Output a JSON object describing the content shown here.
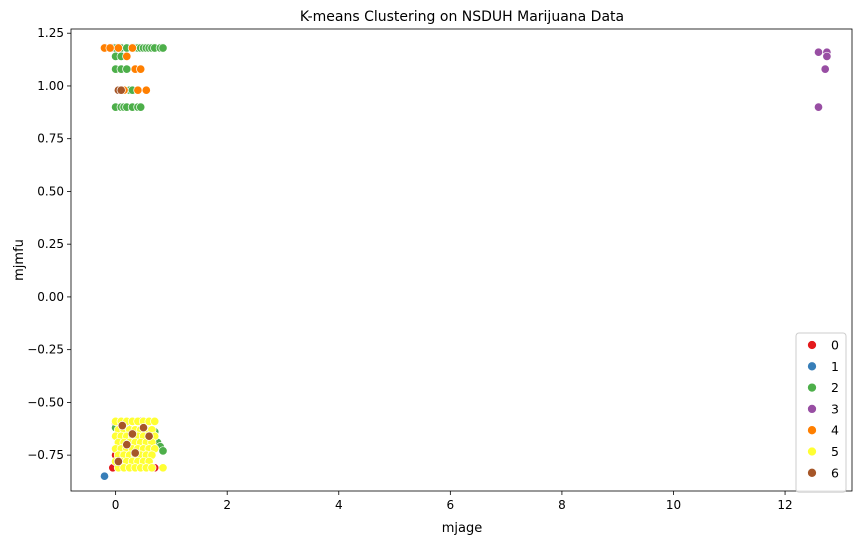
{
  "chart_data": {
    "type": "scatter",
    "title": "K-means Clustering on NSDUH Marijuana Data",
    "xlabel": "mjage",
    "ylabel": "mjmfu",
    "xlim": [
      -0.8,
      13.2
    ],
    "ylim": [
      -0.92,
      1.27
    ],
    "xticks": [
      0,
      2,
      4,
      6,
      8,
      10,
      12
    ],
    "yticks": [
      -0.75,
      -0.5,
      -0.25,
      0.0,
      0.25,
      0.5,
      0.75,
      1.0,
      1.25
    ],
    "xtick_labels": [
      "0",
      "2",
      "4",
      "6",
      "8",
      "10",
      "12"
    ],
    "ytick_labels": [
      "−0.75",
      "−0.50",
      "−0.25",
      "0.00",
      "0.25",
      "0.50",
      "0.75",
      "1.00",
      "1.25"
    ],
    "grid": false,
    "legend_position": "lower-right",
    "series": [
      {
        "name": "0",
        "color": "#e41a1c",
        "points": [
          [
            -0.05,
            1.18
          ],
          [
            0.0,
            1.08
          ],
          [
            0.05,
            0.98
          ],
          [
            0.1,
            1.18
          ],
          [
            -0.05,
            -0.81
          ],
          [
            0.0,
            -0.75
          ],
          [
            0.05,
            -0.68
          ],
          [
            0.1,
            -0.64
          ],
          [
            0.0,
            -0.6
          ],
          [
            0.2,
            -0.62
          ],
          [
            0.3,
            -0.72
          ],
          [
            0.4,
            -0.66
          ],
          [
            0.55,
            -0.76
          ],
          [
            0.7,
            -0.81
          ],
          [
            0.15,
            -0.8
          ],
          [
            0.45,
            -0.59
          ]
        ]
      },
      {
        "name": "1",
        "color": "#377eb8",
        "points": [
          [
            -0.2,
            -0.85
          ]
        ]
      },
      {
        "name": "2",
        "color": "#4daf4a",
        "points": [
          [
            0.0,
            1.18
          ],
          [
            0.1,
            1.18
          ],
          [
            0.2,
            1.18
          ],
          [
            0.3,
            1.18
          ],
          [
            0.35,
            1.18
          ],
          [
            0.4,
            1.18
          ],
          [
            0.45,
            1.18
          ],
          [
            0.5,
            1.18
          ],
          [
            0.55,
            1.18
          ],
          [
            0.6,
            1.18
          ],
          [
            0.65,
            1.18
          ],
          [
            0.7,
            1.18
          ],
          [
            0.8,
            1.18
          ],
          [
            0.85,
            1.18
          ],
          [
            0.0,
            1.14
          ],
          [
            0.1,
            1.14
          ],
          [
            0.0,
            1.08
          ],
          [
            0.1,
            1.08
          ],
          [
            0.2,
            1.08
          ],
          [
            0.25,
            0.98
          ],
          [
            0.3,
            0.98
          ],
          [
            0.0,
            0.9
          ],
          [
            0.1,
            0.9
          ],
          [
            0.15,
            0.9
          ],
          [
            0.2,
            0.9
          ],
          [
            0.3,
            0.9
          ],
          [
            0.4,
            0.9
          ],
          [
            0.45,
            0.9
          ],
          [
            0.0,
            -0.62
          ],
          [
            0.2,
            -0.6
          ],
          [
            0.35,
            -0.63
          ],
          [
            0.5,
            -0.61
          ],
          [
            0.6,
            -0.67
          ],
          [
            0.7,
            -0.64
          ],
          [
            0.75,
            -0.69
          ],
          [
            0.8,
            -0.71
          ],
          [
            0.85,
            -0.73
          ],
          [
            0.4,
            -0.7
          ],
          [
            0.25,
            -0.68
          ],
          [
            0.1,
            -0.78
          ],
          [
            0.3,
            -0.76
          ],
          [
            0.55,
            -0.79
          ],
          [
            0.65,
            -0.74
          ],
          [
            0.05,
            -0.71
          ]
        ]
      },
      {
        "name": "3",
        "color": "#984ea3",
        "points": [
          [
            12.6,
            1.16
          ],
          [
            12.75,
            1.16
          ],
          [
            12.75,
            1.14
          ],
          [
            12.72,
            1.08
          ],
          [
            12.6,
            0.9
          ]
        ]
      },
      {
        "name": "4",
        "color": "#ff7f00",
        "points": [
          [
            -0.2,
            1.18
          ],
          [
            -0.1,
            1.18
          ],
          [
            0.05,
            1.18
          ],
          [
            0.2,
            1.14
          ],
          [
            0.35,
            1.08
          ],
          [
            0.45,
            1.08
          ],
          [
            0.15,
            0.98
          ],
          [
            0.4,
            0.98
          ],
          [
            0.55,
            0.98
          ],
          [
            0.3,
            1.18
          ]
        ]
      },
      {
        "name": "5",
        "color": "#ffff33",
        "points": [
          [
            0.0,
            -0.59
          ],
          [
            0.1,
            -0.59
          ],
          [
            0.2,
            -0.59
          ],
          [
            0.3,
            -0.59
          ],
          [
            0.4,
            -0.59
          ],
          [
            0.5,
            -0.59
          ],
          [
            0.6,
            -0.59
          ],
          [
            0.7,
            -0.59
          ],
          [
            0.05,
            -0.63
          ],
          [
            0.15,
            -0.63
          ],
          [
            0.25,
            -0.63
          ],
          [
            0.35,
            -0.63
          ],
          [
            0.45,
            -0.63
          ],
          [
            0.55,
            -0.63
          ],
          [
            0.65,
            -0.63
          ],
          [
            0.0,
            -0.66
          ],
          [
            0.1,
            -0.66
          ],
          [
            0.2,
            -0.66
          ],
          [
            0.3,
            -0.66
          ],
          [
            0.4,
            -0.66
          ],
          [
            0.5,
            -0.66
          ],
          [
            0.6,
            -0.66
          ],
          [
            0.7,
            -0.66
          ],
          [
            0.05,
            -0.69
          ],
          [
            0.15,
            -0.69
          ],
          [
            0.25,
            -0.69
          ],
          [
            0.35,
            -0.69
          ],
          [
            0.45,
            -0.69
          ],
          [
            0.55,
            -0.69
          ],
          [
            0.65,
            -0.69
          ],
          [
            0.0,
            -0.72
          ],
          [
            0.1,
            -0.72
          ],
          [
            0.2,
            -0.72
          ],
          [
            0.3,
            -0.72
          ],
          [
            0.4,
            -0.72
          ],
          [
            0.5,
            -0.72
          ],
          [
            0.6,
            -0.72
          ],
          [
            0.7,
            -0.72
          ],
          [
            0.05,
            -0.75
          ],
          [
            0.15,
            -0.75
          ],
          [
            0.25,
            -0.75
          ],
          [
            0.35,
            -0.75
          ],
          [
            0.45,
            -0.75
          ],
          [
            0.55,
            -0.75
          ],
          [
            0.65,
            -0.75
          ],
          [
            0.0,
            -0.78
          ],
          [
            0.1,
            -0.78
          ],
          [
            0.2,
            -0.78
          ],
          [
            0.3,
            -0.78
          ],
          [
            0.4,
            -0.78
          ],
          [
            0.5,
            -0.78
          ],
          [
            0.6,
            -0.78
          ],
          [
            0.05,
            -0.81
          ],
          [
            0.15,
            -0.81
          ],
          [
            0.25,
            -0.81
          ],
          [
            0.35,
            -0.81
          ],
          [
            0.45,
            -0.81
          ],
          [
            0.55,
            -0.81
          ],
          [
            0.65,
            -0.81
          ],
          [
            0.85,
            -0.81
          ]
        ]
      },
      {
        "name": "6",
        "color": "#a65628",
        "points": [
          [
            0.05,
            0.98
          ],
          [
            0.1,
            0.98
          ],
          [
            0.12,
            -0.61
          ],
          [
            0.3,
            -0.65
          ],
          [
            0.5,
            -0.62
          ],
          [
            0.6,
            -0.66
          ],
          [
            0.05,
            -0.78
          ],
          [
            0.35,
            -0.74
          ],
          [
            0.2,
            -0.7
          ]
        ]
      }
    ]
  }
}
